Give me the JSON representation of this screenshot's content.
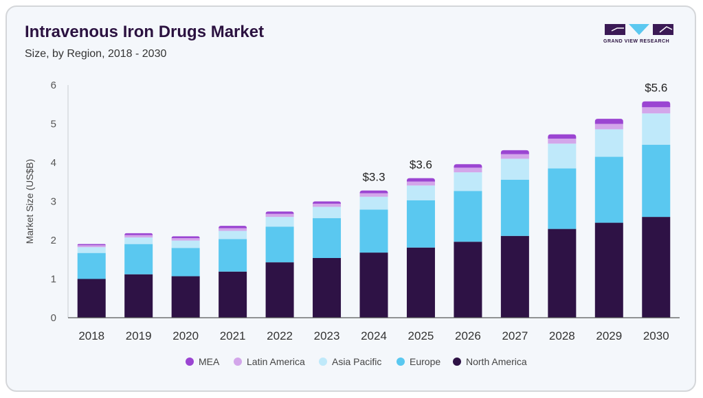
{
  "header": {
    "title": "Intravenous Iron Drugs Market",
    "subtitle": "Size, by Region, 2018 - 2030"
  },
  "logo": {
    "text": "GRAND VIEW RESEARCH",
    "colors": [
      "#3b1a55",
      "#5bc8f0",
      "#3b1a55"
    ]
  },
  "chart_data": {
    "type": "bar",
    "stacked": true,
    "title": "Intravenous Iron Drugs Market",
    "subtitle": "Size, by Region, 2018 - 2030",
    "xlabel": "",
    "ylabel": "Market Size (US$B)",
    "ylim": [
      0,
      6
    ],
    "yticks": [
      0,
      1,
      2,
      3,
      4,
      5,
      6
    ],
    "grid": false,
    "legend_position": "bottom",
    "categories": [
      "2018",
      "2019",
      "2020",
      "2021",
      "2022",
      "2023",
      "2024",
      "2025",
      "2026",
      "2027",
      "2028",
      "2029",
      "2030"
    ],
    "series": [
      {
        "name": "North America",
        "color": "#2e1245",
        "values": [
          1.0,
          1.12,
          1.07,
          1.19,
          1.43,
          1.54,
          1.68,
          1.81,
          1.96,
          2.11,
          2.29,
          2.45,
          2.6
        ]
      },
      {
        "name": "Europe",
        "color": "#5ac8f0",
        "values": [
          0.67,
          0.78,
          0.73,
          0.84,
          0.92,
          1.03,
          1.11,
          1.22,
          1.31,
          1.45,
          1.56,
          1.7,
          1.86
        ]
      },
      {
        "name": "Asia Pacific",
        "color": "#bfe9fa",
        "values": [
          0.15,
          0.17,
          0.19,
          0.21,
          0.25,
          0.29,
          0.33,
          0.38,
          0.48,
          0.54,
          0.64,
          0.71,
          0.81
        ]
      },
      {
        "name": "Latin America",
        "color": "#d3a6ea",
        "values": [
          0.05,
          0.06,
          0.06,
          0.07,
          0.08,
          0.08,
          0.09,
          0.1,
          0.12,
          0.12,
          0.13,
          0.14,
          0.16
        ]
      },
      {
        "name": "MEA",
        "color": "#9b45d2",
        "values": [
          0.03,
          0.05,
          0.05,
          0.06,
          0.06,
          0.06,
          0.07,
          0.09,
          0.09,
          0.1,
          0.11,
          0.13,
          0.15
        ]
      }
    ],
    "legend_order": [
      "MEA",
      "Latin America",
      "Asia Pacific",
      "Europe",
      "North America"
    ],
    "annotations": [
      {
        "category": "2024",
        "text": "$3.3"
      },
      {
        "category": "2025",
        "text": "$3.6"
      },
      {
        "category": "2030",
        "text": "$5.6"
      }
    ]
  }
}
